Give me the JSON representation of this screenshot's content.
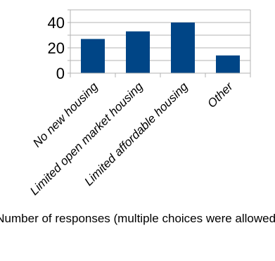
{
  "chart_data": {
    "type": "bar",
    "categories": [
      "No new housing",
      "Limited open market housing",
      "Limited affordable housing",
      "Other"
    ],
    "values": [
      27,
      33,
      40,
      14
    ],
    "title": "",
    "xlabel": "Number of responses (multiple choices were allowed)",
    "ylabel": "",
    "ylim": [
      0,
      50
    ],
    "yticks": [
      0,
      20,
      40
    ],
    "grid": true,
    "legend": "none",
    "bar_color": "#004586",
    "grid_color": "#b3b3b3"
  }
}
